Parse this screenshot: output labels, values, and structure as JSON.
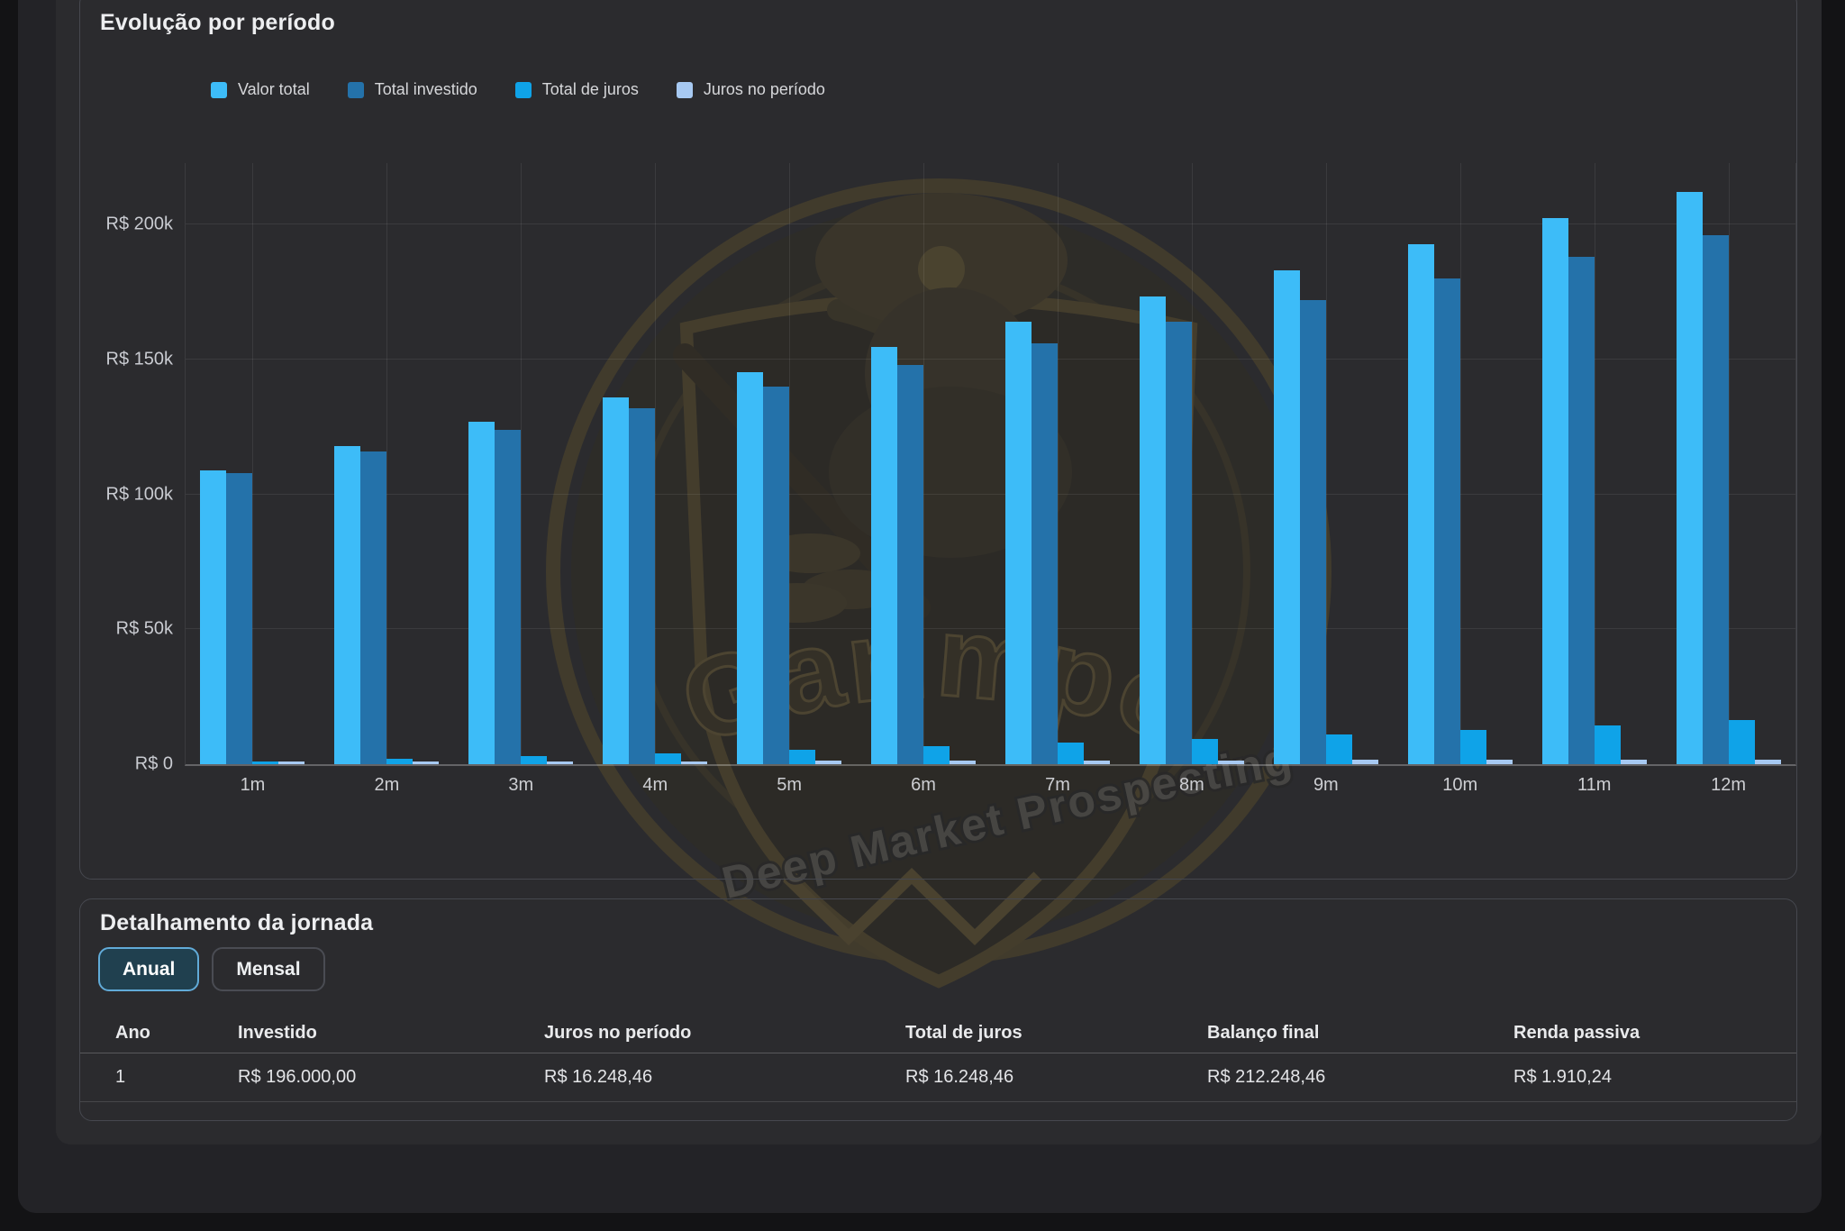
{
  "watermark": {
    "title": "Garimpo",
    "subtitle": "Deep Market Prospecting"
  },
  "chart_panel": {
    "title": "Evolução por período"
  },
  "chart_data": {
    "type": "bar",
    "title": "Evolução por período",
    "categories": [
      "1m",
      "2m",
      "3m",
      "4m",
      "5m",
      "6m",
      "7m",
      "8m",
      "9m",
      "10m",
      "11m",
      "12m"
    ],
    "series": [
      {
        "name": "Valor total",
        "color": "#3dbcf8",
        "values": [
          108900,
          117880,
          126941,
          136083,
          145308,
          154616,
          164008,
          173484,
          183045,
          192692,
          202427,
          212248
        ]
      },
      {
        "name": "Total investido",
        "color": "#2472aa",
        "values": [
          108000,
          116000,
          124000,
          132000,
          140000,
          148000,
          156000,
          164000,
          172000,
          180000,
          188000,
          196000
        ]
      },
      {
        "name": "Total de juros",
        "color": "#0fa3e8",
        "values": [
          900,
          1880,
          2941,
          4083,
          5308,
          6616,
          8008,
          9484,
          11045,
          12692,
          14427,
          16248
        ]
      },
      {
        "name": "Juros no período",
        "color": "#a7c9f2",
        "values": [
          900,
          980,
          1061,
          1142,
          1225,
          1308,
          1392,
          1476,
          1561,
          1647,
          1734,
          1822
        ]
      }
    ],
    "y_ticks": [
      {
        "label": "R$ 200k",
        "value": 200000
      },
      {
        "label": "R$ 150k",
        "value": 150000
      },
      {
        "label": "R$ 100k",
        "value": 100000
      },
      {
        "label": "R$ 50k",
        "value": 50000
      },
      {
        "label": "R$ 0",
        "value": 0
      }
    ],
    "ylim": [
      0,
      222860
    ],
    "xlabel": "",
    "ylabel": "",
    "grid": true,
    "legend_position": "top-left"
  },
  "detail": {
    "title": "Detalhamento da jornada",
    "tabs": [
      {
        "id": "anual",
        "label": "Anual",
        "active": true
      },
      {
        "id": "mensal",
        "label": "Mensal",
        "active": false
      }
    ],
    "table": {
      "columns": [
        "Ano",
        "Investido",
        "Juros no período",
        "Total de juros",
        "Balanço final",
        "Renda passiva"
      ],
      "rows": [
        [
          "1",
          "R$ 196.000,00",
          "R$ 16.248,46",
          "R$ 16.248,46",
          "R$ 212.248,46",
          "R$ 1.910,24"
        ]
      ]
    }
  }
}
